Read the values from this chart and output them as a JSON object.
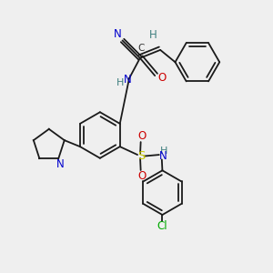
{
  "background_color": "#efefef",
  "bond_color": "#1a1a1a",
  "lw": 1.3,
  "ring_r": 0.082,
  "pyrr_r": 0.055,
  "colors": {
    "N": "#0000cc",
    "O": "#cc0000",
    "S": "#cccc00",
    "H": "#408080",
    "Cl": "#00aa00",
    "C": "#303030",
    "bond": "#1a1a1a"
  }
}
